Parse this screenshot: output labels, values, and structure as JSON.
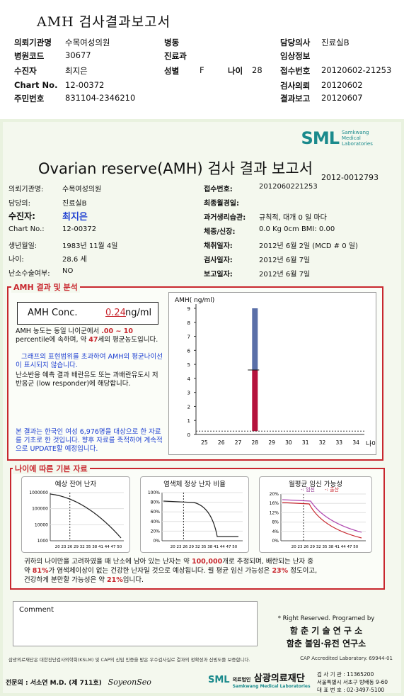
{
  "header": {
    "title": "AMH 검사결과보고서",
    "rows": [
      {
        "l1": "의뢰기관명",
        "v1": "수목여성의원",
        "l2": "병동",
        "v2": "",
        "l3": "담당의사",
        "v3": "진료실B"
      },
      {
        "l1": "병원코드",
        "v1": "30677",
        "l2": "진료과",
        "v2": "",
        "l3": "임상정보",
        "v3": ""
      },
      {
        "l1": "수진자",
        "v1": "최지은",
        "l2": "성별",
        "v2": "F",
        "l2b": "나이",
        "v2b": "28",
        "l3": "접수번호",
        "v3": "20120602-21253"
      },
      {
        "l1": "Chart No.",
        "v1": "12-00372",
        "l2": "",
        "v2": "",
        "l3": "검사의뢰",
        "v3": "20120602"
      },
      {
        "l1": "주민번호",
        "v1": "831104-2346210",
        "l2": "",
        "v2": "",
        "l3": "결과보고",
        "v3": "20120607"
      }
    ]
  },
  "logo": {
    "text": "SML",
    "sub": "Samkwang Medical Laboratories"
  },
  "report": {
    "title": "Ovarian reserve(AMH) 검사 결과 보고서",
    "number": "2012-0012793",
    "left": [
      {
        "label": "의뢰기관명:",
        "value": "수목여성의원"
      },
      {
        "label": "담당의:",
        "value": "진료실B"
      },
      {
        "label": "수진자:",
        "value": "최지은"
      },
      {
        "label": "Chart No.:",
        "value": "12-00372"
      },
      {
        "label": "생년월일:",
        "value": "1983년 11월 4일"
      },
      {
        "label": "나이:",
        "value": "28.6 세"
      },
      {
        "label": "난소수술여부:",
        "value": "NO"
      }
    ],
    "right": [
      {
        "label": "접수번호:",
        "value": "2012060221253"
      },
      {
        "label": "최종월경일:",
        "value": ""
      },
      {
        "label": "과거생리습관:",
        "value": "규칙적,  대개    0  일 마다"
      },
      {
        "label": "체중/신장:",
        "value": "0.0  Kg        0cm     BMI:   0.00"
      },
      {
        "label": "채취일자:",
        "value": "2012년 6월 2일    (MCD #  0 일)"
      },
      {
        "label": "검사일자:",
        "value": "2012년 6월 7일"
      },
      {
        "label": "보고일자:",
        "value": "2012년 6월 7일"
      }
    ]
  },
  "result": {
    "section_label": "AMH 결과 및 분석",
    "conc_label": "AMH Conc.",
    "conc_value": "0.24",
    "conc_unit": "ng/ml",
    "p1_a": "AMH 농도는 동일 나이군에서 ",
    "p1_range": ".00 ~ 10",
    "p1_b": "percentile에 속하며, 약 ",
    "p1_age": "47",
    "p1_c": "세의 평균농도입니다.",
    "p2": "그래프의 표현범위를 초과하여 AMH의 평균나이선이 표시되지 않습니다.",
    "p3": "난소반응 예측 결과 배란유도 또는 과배란유도시 저반응군 (low responder)에 해당합니다.",
    "p4": "본 결과는 한국인 여성 6,976명을 대상으로 한 자료를 기초로 한 것입니다. 향후 자료를 축적하여 계속적으로 UPDATE할 예정입니다."
  },
  "chart_data": [
    {
      "type": "bar",
      "ylabel": "AMH( ng/ml)",
      "xlabel": "나이",
      "categories": [
        "25",
        "26",
        "27",
        "28",
        "29",
        "30",
        "31",
        "32",
        "33",
        "34"
      ],
      "yticks": [
        "0",
        "1",
        "2",
        "3",
        "4",
        "5",
        "6",
        "7",
        "8",
        "9"
      ],
      "ylim": [
        0,
        9
      ],
      "highlight_category": "28",
      "range_low": 0.24,
      "median": 4.6,
      "range_high": 9,
      "patient_value": 0.24,
      "colors": {
        "lower": "#b5123c",
        "upper": "#5a6fa8"
      }
    },
    {
      "type": "line",
      "title": "예상 잔여 난자",
      "yticks": [
        "1000",
        "10000",
        "100000",
        "1000000"
      ],
      "xticks": "20 23 26 29 32 35 38 41 44 47 50",
      "log_scale": true
    },
    {
      "type": "line",
      "title": "염색체 정상 난자 비율",
      "yticks": [
        "0%",
        "20%",
        "40%",
        "60%",
        "80%",
        "100%"
      ],
      "xticks": "20 23 26 29 32 35 38 41 44 47 50"
    },
    {
      "type": "line",
      "title": "월평균 임신 가능성",
      "legend": [
        "임신",
        "출산"
      ],
      "yticks": [
        "0%",
        "4%",
        "8%",
        "12%",
        "16%",
        "20%"
      ],
      "xticks": "20 23 26 29 32 35 38 41 44 47 50"
    }
  ],
  "age": {
    "section_label": "나이에 따른 기본 자료",
    "s1": "귀하의 나이만을 고려하였을 때 난소에 남아 있는 난자는 약 ",
    "s1v": "100,000",
    "s1b": "개로 추정되며, 배란되는 난자 중",
    "s2": "약 ",
    "s2v": "81%",
    "s2b": "가 염색체이상이 없는 건강한 난자일 것으로 예상됩니다. 월 평균 임신 가능성은 ",
    "s2c": "23%",
    "s2d": " 정도이고,",
    "s3": "건강하게 분만할 가능성은 약 ",
    "s3v": "21%",
    "s3b": "입니다."
  },
  "comment_label": "Comment",
  "rights": {
    "r1": "* Right Reserved. Programed by",
    "r2": "함 춘  기 술  연 구 소",
    "r3": "함춘 불임·유전 연구소"
  },
  "footer": {
    "small": "삼광의료재단은 대한진단검사의학회(KSLM) 및 CAP의 신임 인증을 받은 우수검사실로 결과의 정확성과 신빙도를 보증합니다.",
    "cap": "CAP Accredited  Laboratory.  69944-01",
    "sign": "전문의 : 서소연 M.D. (제 711호)",
    "signature": "SoyeonSeo",
    "bottom_brand": "삼광의료재단",
    "bottom_brand_pre": "의료법인",
    "bottom_sub": "Samkwang Medical Laboratories",
    "c1": "검 사 기 관 : 11365200",
    "c2": "서울특별시 서초구 방배동 9-60",
    "c3": "대 표 번 호 : 02-3497-5100"
  }
}
